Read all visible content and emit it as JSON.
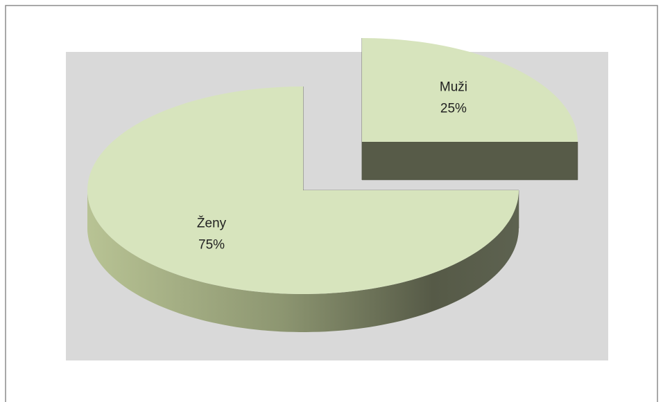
{
  "chart_data": {
    "type": "pie",
    "categories": [
      "Muži",
      "Ženy"
    ],
    "values": [
      25,
      75
    ],
    "value_labels": [
      "25%",
      "75%"
    ],
    "color": "#d7e4bd",
    "exploded": [
      "Muži"
    ]
  }
}
